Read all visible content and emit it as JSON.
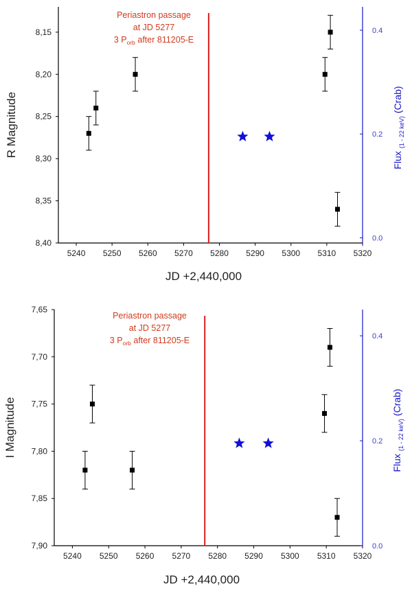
{
  "chart_data": [
    {
      "type": "scatter",
      "xlabel": "JD +2,440,000",
      "ylabel": "R Magnitude",
      "xlim": [
        5235,
        5320
      ],
      "xticks": [
        5240,
        5250,
        5260,
        5270,
        5280,
        5290,
        5300,
        5310,
        5320
      ],
      "xtick_labels": [
        "5240",
        "5250",
        "5260",
        "5270",
        "5280",
        "5290",
        "5300",
        "5310",
        "5320"
      ],
      "ylim": [
        8.4,
        8.12
      ],
      "yticks": [
        8.15,
        8.2,
        8.25,
        8.3,
        8.35,
        8.4
      ],
      "ytick_labels": [
        "8,15",
        "8,20",
        "8,25",
        "8,30",
        "8,35",
        "8,40"
      ],
      "y2label_main": "Flux",
      "y2label_sub": "(1 - 22 keV)",
      "y2label_unit": "(Crab)",
      "y2lim": [
        -0.01,
        0.445
      ],
      "y2ticks": [
        0.0,
        0.2,
        0.4
      ],
      "y2tick_labels": [
        "0.0",
        "0.2",
        "0.4"
      ],
      "periastron_x": 5277,
      "annotation": [
        "Periastron passage",
        "at JD 5277",
        "3 P",
        "orb",
        " after 811205-E"
      ],
      "series": [
        {
          "name": "R magnitude",
          "axis": "left",
          "x": [
            5243.5,
            5245.5,
            5256.5,
            5309.5,
            5311,
            5313
          ],
          "y": [
            8.27,
            8.24,
            8.2,
            8.2,
            8.15,
            8.36
          ],
          "err": [
            0.02,
            0.02,
            0.02,
            0.02,
            0.02,
            0.02
          ]
        },
        {
          "name": "X-ray flux",
          "axis": "right",
          "marker": "star",
          "x": [
            5286.5,
            5294
          ],
          "y": [
            0.195,
            0.195
          ]
        }
      ]
    },
    {
      "type": "scatter",
      "xlabel": "JD +2,440,000",
      "ylabel": "I Magnitude",
      "xlim": [
        5235,
        5320
      ],
      "xticks": [
        5240,
        5250,
        5260,
        5270,
        5280,
        5290,
        5300,
        5310,
        5320
      ],
      "xtick_labels": [
        "5240",
        "5250",
        "5260",
        "5270",
        "5280",
        "5290",
        "5300",
        "5310",
        "5320"
      ],
      "ylim": [
        7.9,
        7.65
      ],
      "yticks": [
        7.65,
        7.7,
        7.75,
        7.8,
        7.85,
        7.9
      ],
      "ytick_labels": [
        "7,65",
        "7,70",
        "7,75",
        "7,80",
        "7,85",
        "7,90"
      ],
      "y2label_main": "Flux",
      "y2label_sub": "(1 - 22 keV)",
      "y2label_unit": "(Crab)",
      "y2lim": [
        0.0,
        0.45
      ],
      "y2ticks": [
        0.0,
        0.2,
        0.4
      ],
      "y2tick_labels": [
        "0.0",
        "0.2",
        "0.4"
      ],
      "periastron_x": 5276.5,
      "annotation": [
        "Periastron passage",
        "at JD 5277",
        "3 P",
        "orb",
        " after 811205-E"
      ],
      "series": [
        {
          "name": "I magnitude",
          "axis": "left",
          "x": [
            5243.5,
            5245.5,
            5256.5,
            5309.5,
            5311,
            5313
          ],
          "y": [
            7.82,
            7.75,
            7.82,
            7.76,
            7.69,
            7.87
          ],
          "err": [
            0.02,
            0.02,
            0.02,
            0.02,
            0.02,
            0.02
          ]
        },
        {
          "name": "X-ray flux",
          "axis": "right",
          "marker": "star",
          "x": [
            5286,
            5294
          ],
          "y": [
            0.195,
            0.195
          ]
        }
      ]
    }
  ]
}
